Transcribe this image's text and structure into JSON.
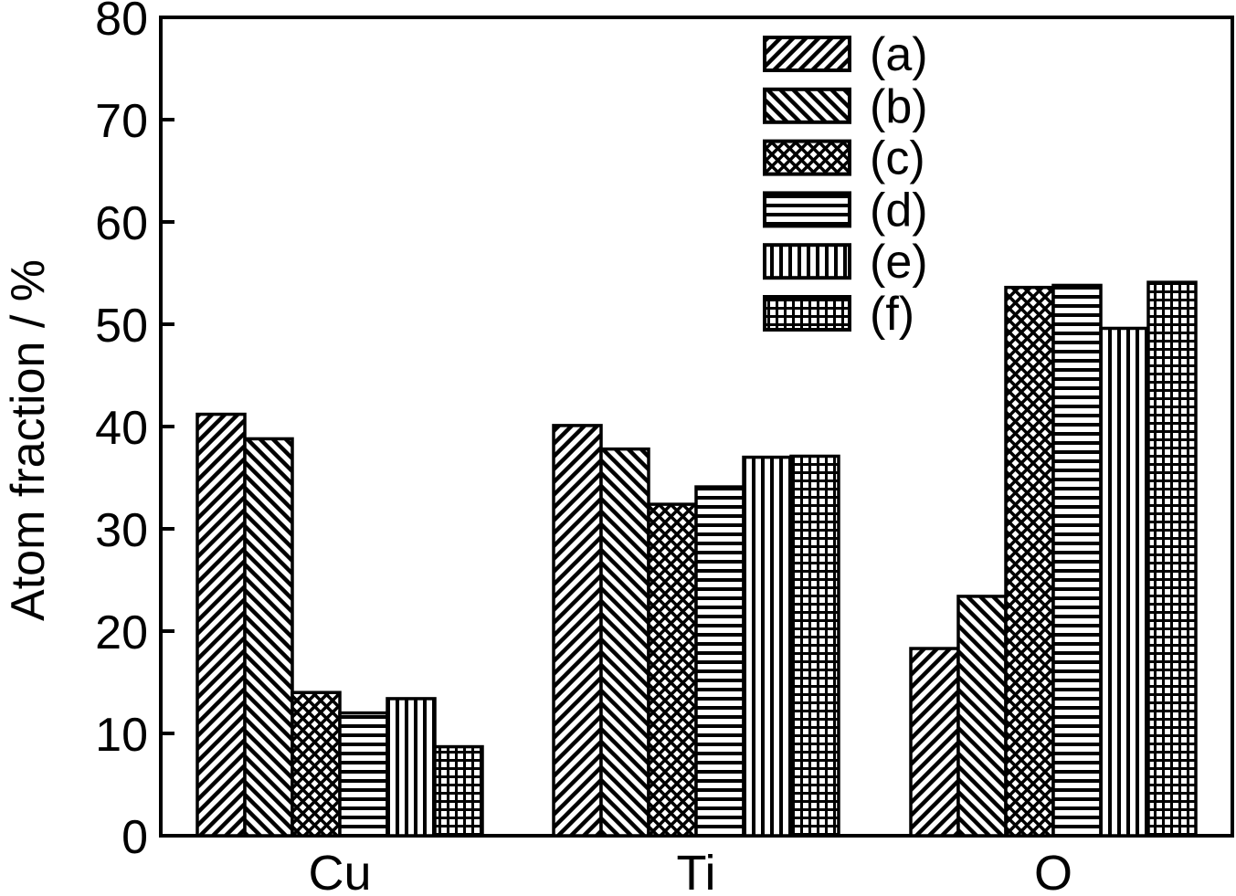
{
  "chart_data": {
    "type": "bar",
    "title": "",
    "xlabel": "",
    "ylabel": "Atom fraction / %",
    "ylim": [
      0,
      80
    ],
    "yticks": [
      0,
      10,
      20,
      30,
      40,
      50,
      60,
      70,
      80
    ],
    "categories": [
      "Cu",
      "Ti",
      "O"
    ],
    "series": [
      {
        "name": "(a)",
        "pattern": "diag-forward",
        "values": [
          41.2,
          40.1,
          18.3
        ]
      },
      {
        "name": "(b)",
        "pattern": "diag-backward",
        "values": [
          38.8,
          37.8,
          23.4
        ]
      },
      {
        "name": "(c)",
        "pattern": "crosshatch",
        "values": [
          14.0,
          32.4,
          53.6
        ]
      },
      {
        "name": "(d)",
        "pattern": "horizontal",
        "values": [
          12.0,
          34.1,
          53.8
        ]
      },
      {
        "name": "(e)",
        "pattern": "vertical",
        "values": [
          13.4,
          37.0,
          49.6
        ]
      },
      {
        "name": "(f)",
        "pattern": "grid",
        "values": [
          8.7,
          37.1,
          54.1
        ]
      }
    ],
    "legend_position": "top-right",
    "grid": false,
    "colors": {
      "bar_stroke": "#000000",
      "fill": "#ffffff"
    }
  }
}
